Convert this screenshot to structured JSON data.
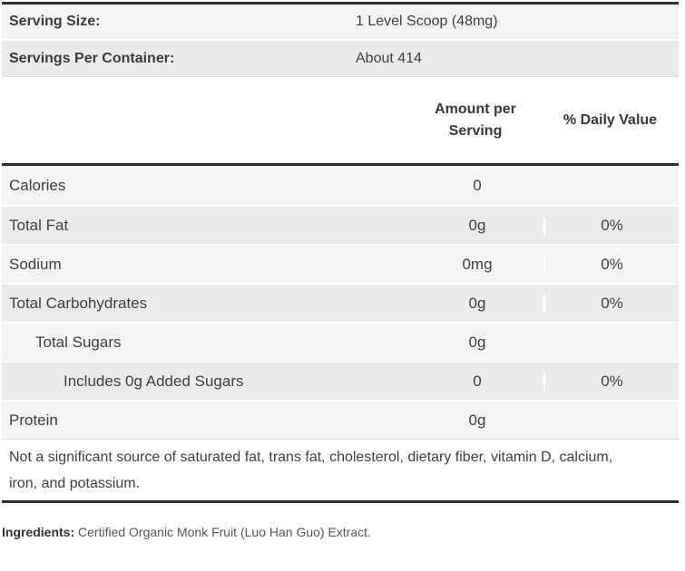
{
  "serving_info": {
    "rows": [
      {
        "label": "Serving Size:",
        "value": "1 Level Scoop (48mg)"
      },
      {
        "label": "Servings Per Container:",
        "value": "About 414"
      }
    ]
  },
  "nutrition_table": {
    "headers": {
      "amount": "Amount per Serving",
      "daily_value": "% Daily Value"
    },
    "rows": [
      {
        "label": "Calories",
        "amount": "0",
        "daily_value": ""
      },
      {
        "label": "Total Fat",
        "amount": "0g",
        "daily_value": "0%"
      },
      {
        "label": "Sodium",
        "amount": "0mg",
        "daily_value": "0%"
      },
      {
        "label": "Total Carbohydrates",
        "amount": "0g",
        "daily_value": "0%"
      },
      {
        "label": "Total Sugars",
        "amount": "0g",
        "daily_value": ""
      },
      {
        "label": "Includes 0g Added Sugars",
        "amount": "0",
        "daily_value": "0%"
      },
      {
        "label": "Protein",
        "amount": "0g",
        "daily_value": ""
      }
    ],
    "footnote": "Not a significant source of saturated fat, trans fat, cholesterol, dietary fiber, vitamin D, calcium, iron, and potassium."
  },
  "ingredients": {
    "label": "Ingredients:",
    "text": "Certified Organic Monk Fruit (Luo Han Guo) Extract."
  },
  "colors": {
    "heavy_rule": "#2e2e2e",
    "row_light": "#f4f4f4",
    "row_dark": "#ebebeb",
    "light_rule": "#d9d9d9",
    "text": "#3f3f3f"
  }
}
